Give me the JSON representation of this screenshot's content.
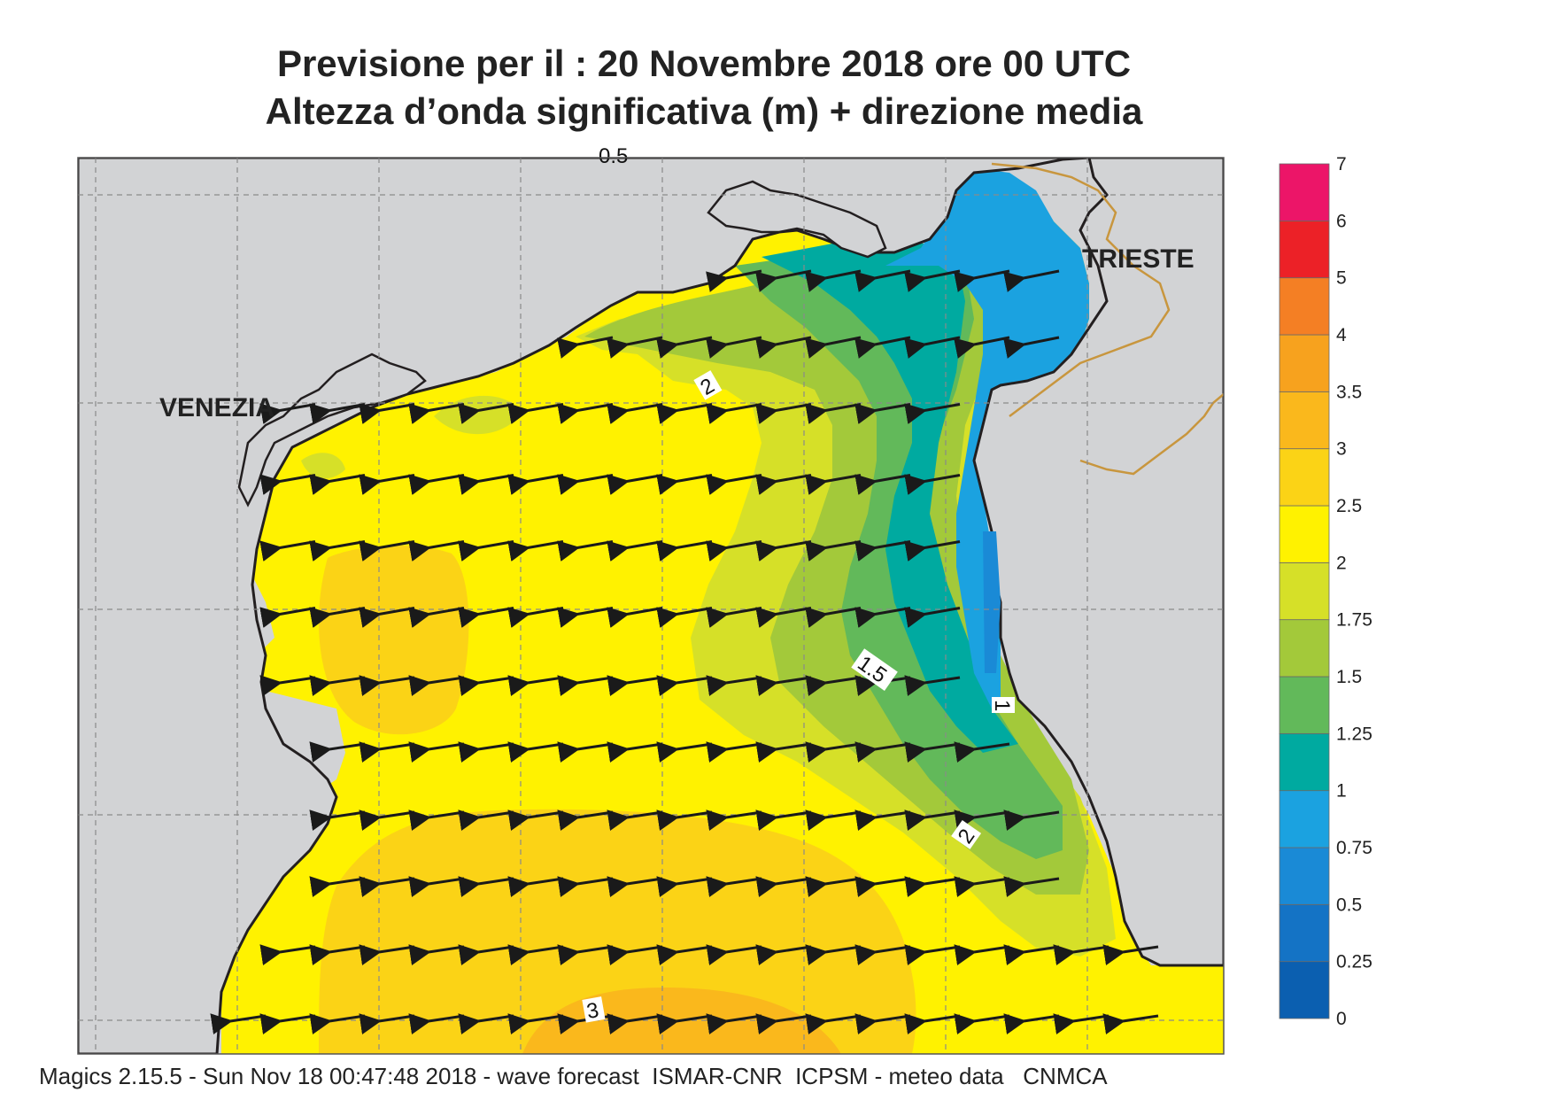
{
  "title": {
    "line1": "Previsione per il  :  20 Novembre  2018   ore 00 UTC",
    "line2": "Altezza d’onda significativa (m) + direzione media"
  },
  "footer": "Magics 2.15.5 - Sun Nov 18 00:47:48 2018 - wave forecast  ISMAR-CNR  ICPSM - meteo data   CNMCA",
  "map": {
    "cities": [
      {
        "name": "VENEZIA"
      },
      {
        "name": "TRIESTE"
      }
    ],
    "contour_labels": [
      "0.5",
      "2",
      "1.5",
      "1",
      "2",
      "3"
    ],
    "wave_direction": "towards west / south-west",
    "colors": {
      "land": "#d2d3d5",
      "coast": "#231f20",
      "border": "#c8963e",
      "arrow": "#1a1a1a"
    }
  },
  "colorbar": {
    "levels": [
      "0",
      "0.25",
      "0.5",
      "0.75",
      "1",
      "1.25",
      "1.5",
      "1.75",
      "2",
      "2.5",
      "3",
      "3.5",
      "4",
      "5",
      "6",
      "7"
    ],
    "colors": [
      "#0b5fb0",
      "#1473c5",
      "#1a8ad6",
      "#1ba2e0",
      "#00aaa0",
      "#62b95a",
      "#a3c93a",
      "#d6e028",
      "#fff200",
      "#fbd316",
      "#fab81c",
      "#f7a21e",
      "#f47f24",
      "#ec2127",
      "#ec1568"
    ]
  }
}
